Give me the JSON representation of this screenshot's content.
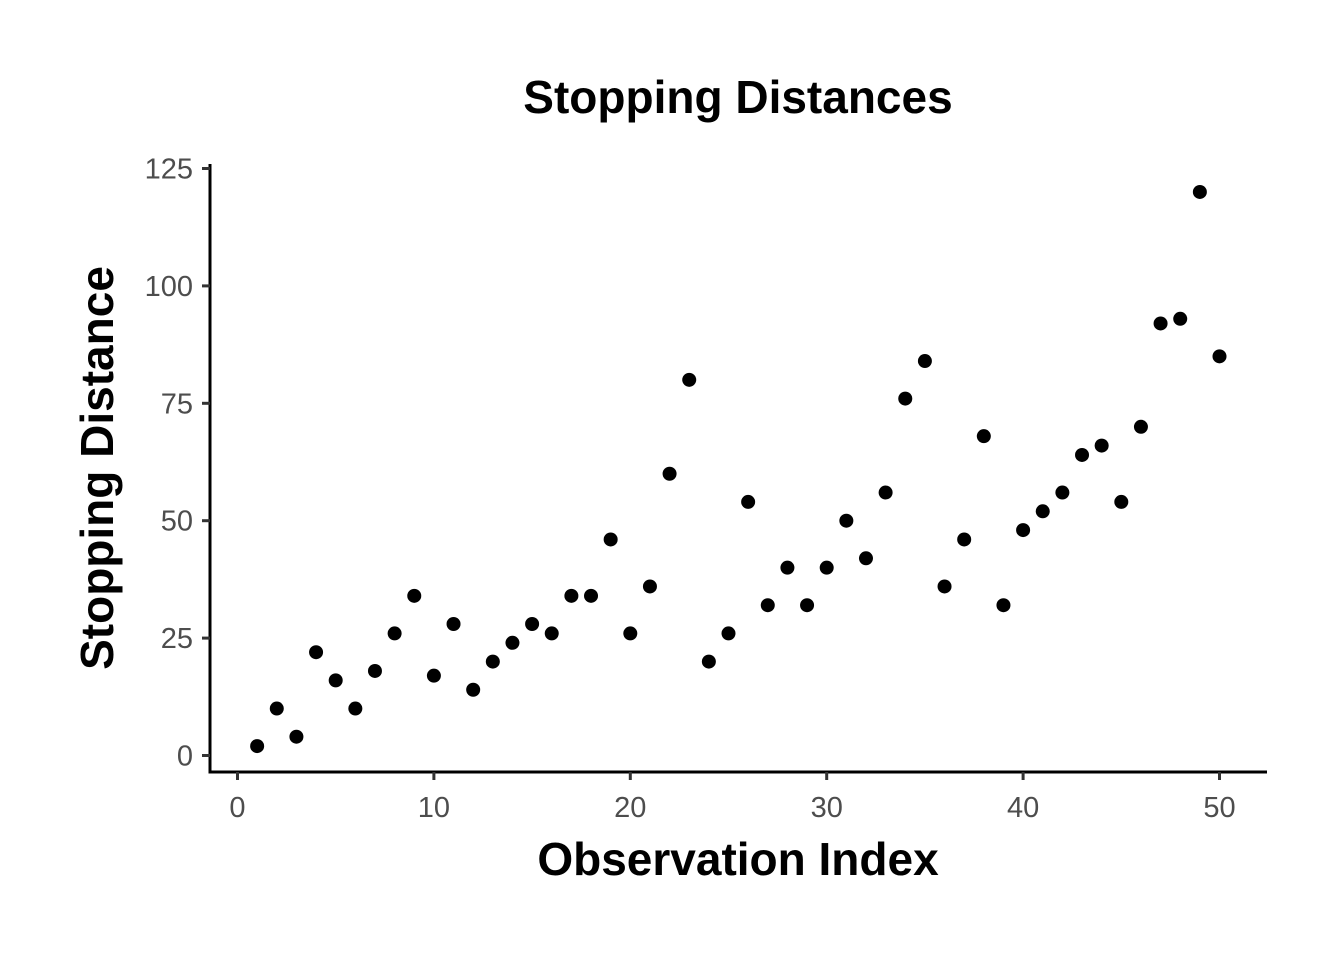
{
  "chart_data": {
    "type": "scatter",
    "title": "Stopping Distances",
    "xlabel": "Observation Index",
    "ylabel": "Stopping Distance",
    "xlim": [
      -1.45,
      52.45
    ],
    "ylim": [
      -3.9,
      125.9
    ],
    "x_ticks": [
      0,
      10,
      20,
      30,
      40,
      50
    ],
    "y_ticks": [
      0,
      25,
      50,
      75,
      100,
      125
    ],
    "grid": false,
    "legend": null,
    "point_color": "#000000",
    "x": [
      1,
      2,
      3,
      4,
      5,
      6,
      7,
      8,
      9,
      10,
      11,
      12,
      13,
      14,
      15,
      16,
      17,
      18,
      19,
      20,
      21,
      22,
      23,
      24,
      25,
      26,
      27,
      28,
      29,
      30,
      31,
      32,
      33,
      34,
      35,
      36,
      37,
      38,
      39,
      40,
      41,
      42,
      43,
      44,
      45,
      46,
      47,
      48,
      49,
      50
    ],
    "y": [
      2,
      10,
      4,
      22,
      16,
      10,
      18,
      26,
      34,
      17,
      28,
      14,
      20,
      24,
      28,
      26,
      34,
      34,
      46,
      26,
      36,
      60,
      80,
      20,
      26,
      54,
      32,
      40,
      32,
      40,
      50,
      42,
      56,
      76,
      84,
      36,
      46,
      68,
      32,
      48,
      52,
      56,
      64,
      66,
      54,
      70,
      92,
      93,
      120,
      85
    ]
  }
}
